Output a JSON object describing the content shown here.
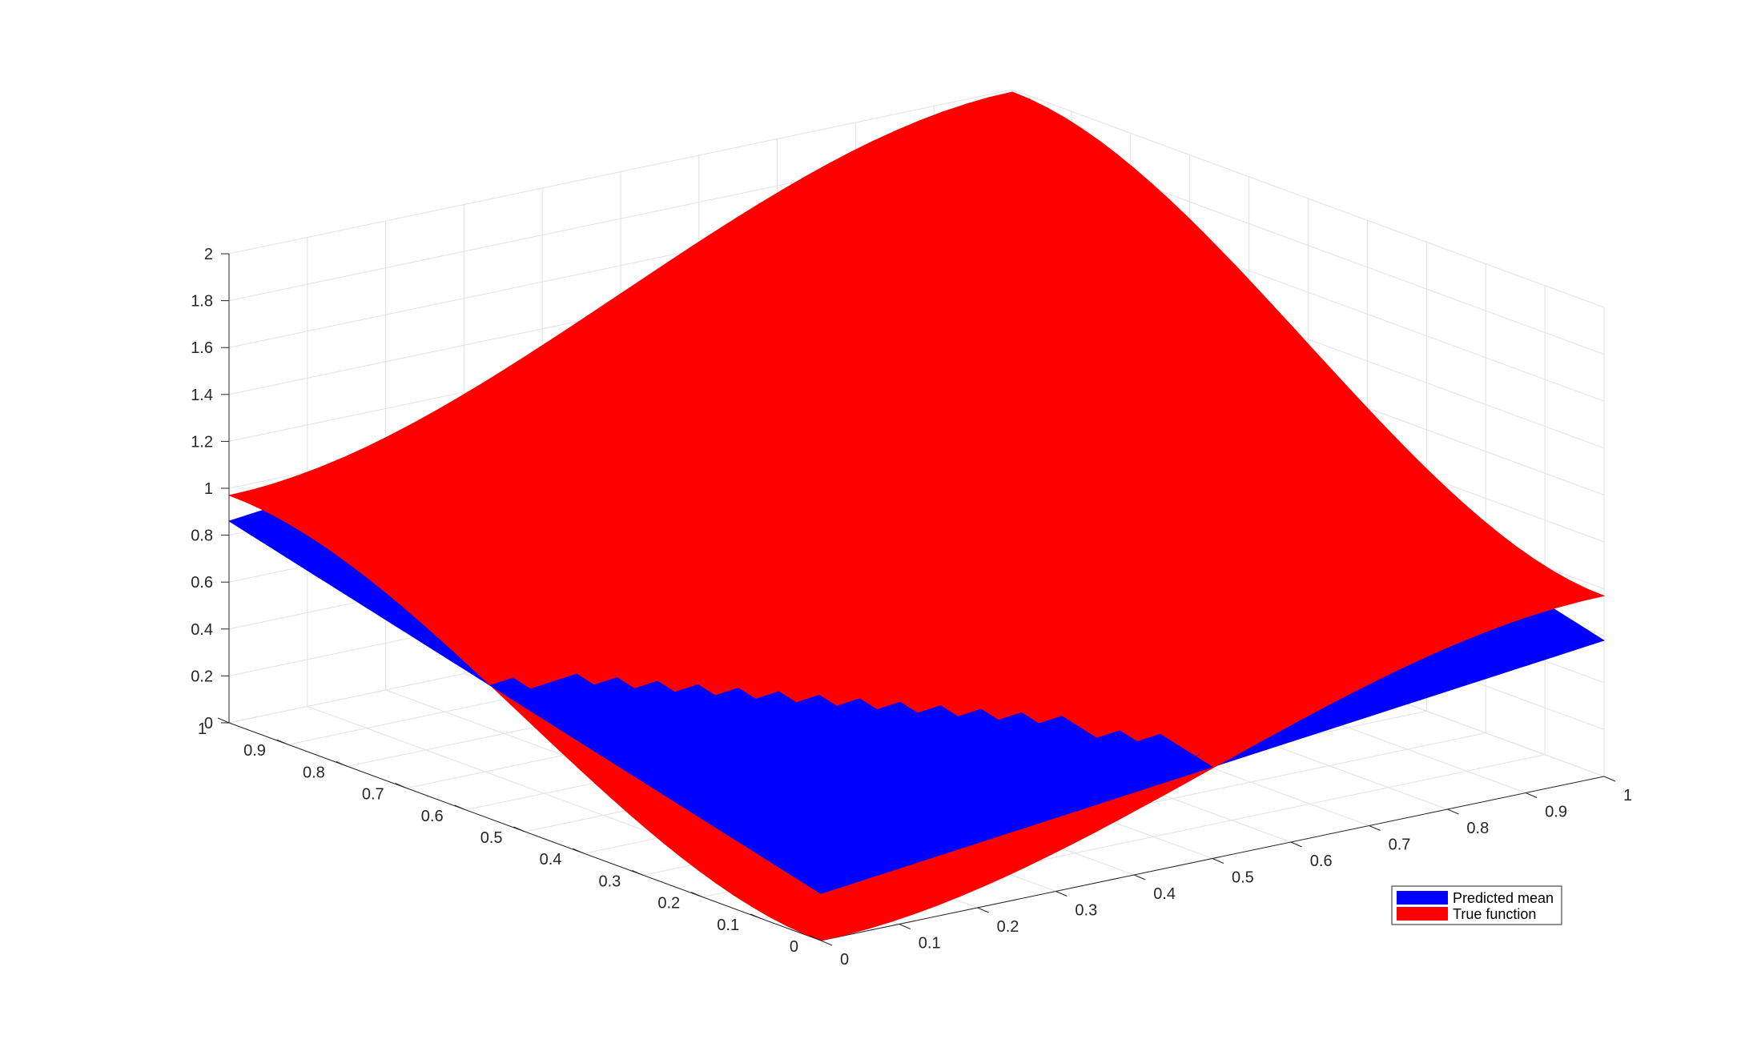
{
  "chart_data": {
    "type": "surface",
    "title": "",
    "xlabel": "",
    "ylabel": "",
    "zlabel": "",
    "xlim": [
      0,
      1
    ],
    "ylim": [
      0,
      1
    ],
    "zlim": [
      0,
      2
    ],
    "x_ticks": [
      "0",
      "0.1",
      "0.2",
      "0.3",
      "0.4",
      "0.5",
      "0.6",
      "0.7",
      "0.8",
      "0.9",
      "1"
    ],
    "y_ticks": [
      "0",
      "0.1",
      "0.2",
      "0.3",
      "0.4",
      "0.5",
      "0.6",
      "0.7",
      "0.8",
      "0.9",
      "1"
    ],
    "z_ticks": [
      "0",
      "0.2",
      "0.4",
      "0.6",
      "0.8",
      "1",
      "1.2",
      "1.4",
      "1.6",
      "1.8",
      "2"
    ],
    "grid": true,
    "legend_position": "bottom-right",
    "series": [
      {
        "name": "Predicted mean",
        "color": "#0000ff",
        "corner_values": {
          "x0_y0": 0.2,
          "x1_y0": 0.58,
          "x0_y1": 0.86,
          "x1_y1": 1.24
        }
      },
      {
        "name": "True function",
        "color": "#ff0000",
        "corner_values": {
          "x0_y0": 0.0,
          "x1_y0": 0.77,
          "x0_y1": 0.97,
          "x1_y1": 1.99
        }
      }
    ]
  }
}
